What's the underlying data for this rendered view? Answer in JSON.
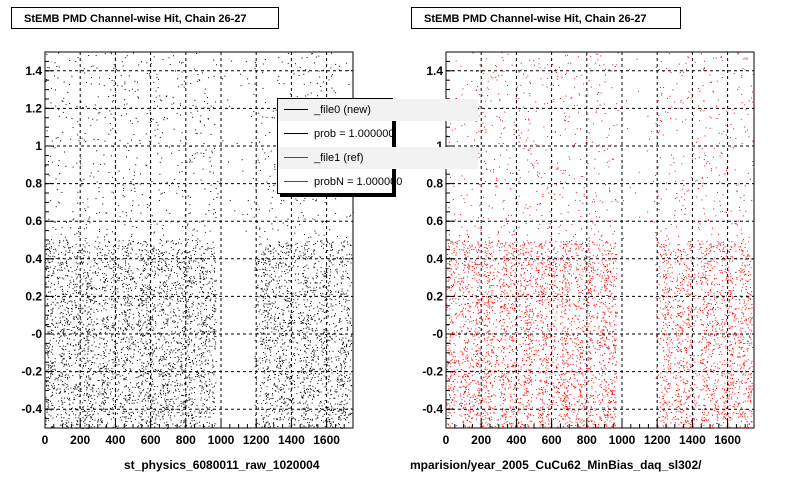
{
  "chart_data": [
    {
      "type": "scatter",
      "title": "StEMB PMD Channel-wise Hit, Chain 26-27",
      "footer": "st_physics_6080011_raw_1020004",
      "color": "#000000",
      "xlim": [
        0,
        1750
      ],
      "ylim": [
        -0.5,
        1.5
      ],
      "xticks": [
        "0",
        "200",
        "400",
        "600",
        "800",
        "1000",
        "1200",
        "1400",
        "1600"
      ],
      "yticks": [
        "-0.4",
        "-0.2",
        "-0",
        "0.2",
        "0.4",
        "0.6",
        "0.8",
        "1",
        "1.2",
        "1.4"
      ],
      "grid": true,
      "dense_band_y": [
        -0.5,
        0.5
      ],
      "dense_x_ranges": [
        [
          0,
          970
        ],
        [
          1190,
          1740
        ]
      ],
      "legend": {
        "placement": "top-right",
        "entries": [
          {
            "label": "_file0 (new)",
            "color": "#000000"
          },
          {
            "label": "prob = 1.000000",
            "color": "#000000"
          },
          {
            "label": "_file1 (ref)",
            "color": "#ff0000"
          },
          {
            "label": "probN = 1.000000",
            "color": "#ff0000"
          }
        ]
      }
    },
    {
      "type": "scatter",
      "title": "StEMB PMD Channel-wise Hit, Chain 26-27",
      "footer": "mparision/year_2005_CuCu62_MinBias_daq_sl302/",
      "color": "#ff0000",
      "xlim": [
        0,
        1750
      ],
      "ylim": [
        -0.5,
        1.5
      ],
      "xticks": [
        "0",
        "200",
        "400",
        "600",
        "800",
        "1000",
        "1200",
        "1400",
        "1600"
      ],
      "yticks": [
        "-0.4",
        "-0.2",
        "-0",
        "0.2",
        "0.4",
        "0.6",
        "0.8",
        "1",
        "1.2",
        "1.4"
      ],
      "grid": true,
      "dense_band_y": [
        -0.5,
        0.5
      ],
      "dense_x_ranges": [
        [
          0,
          970
        ],
        [
          1190,
          1740
        ]
      ]
    }
  ]
}
